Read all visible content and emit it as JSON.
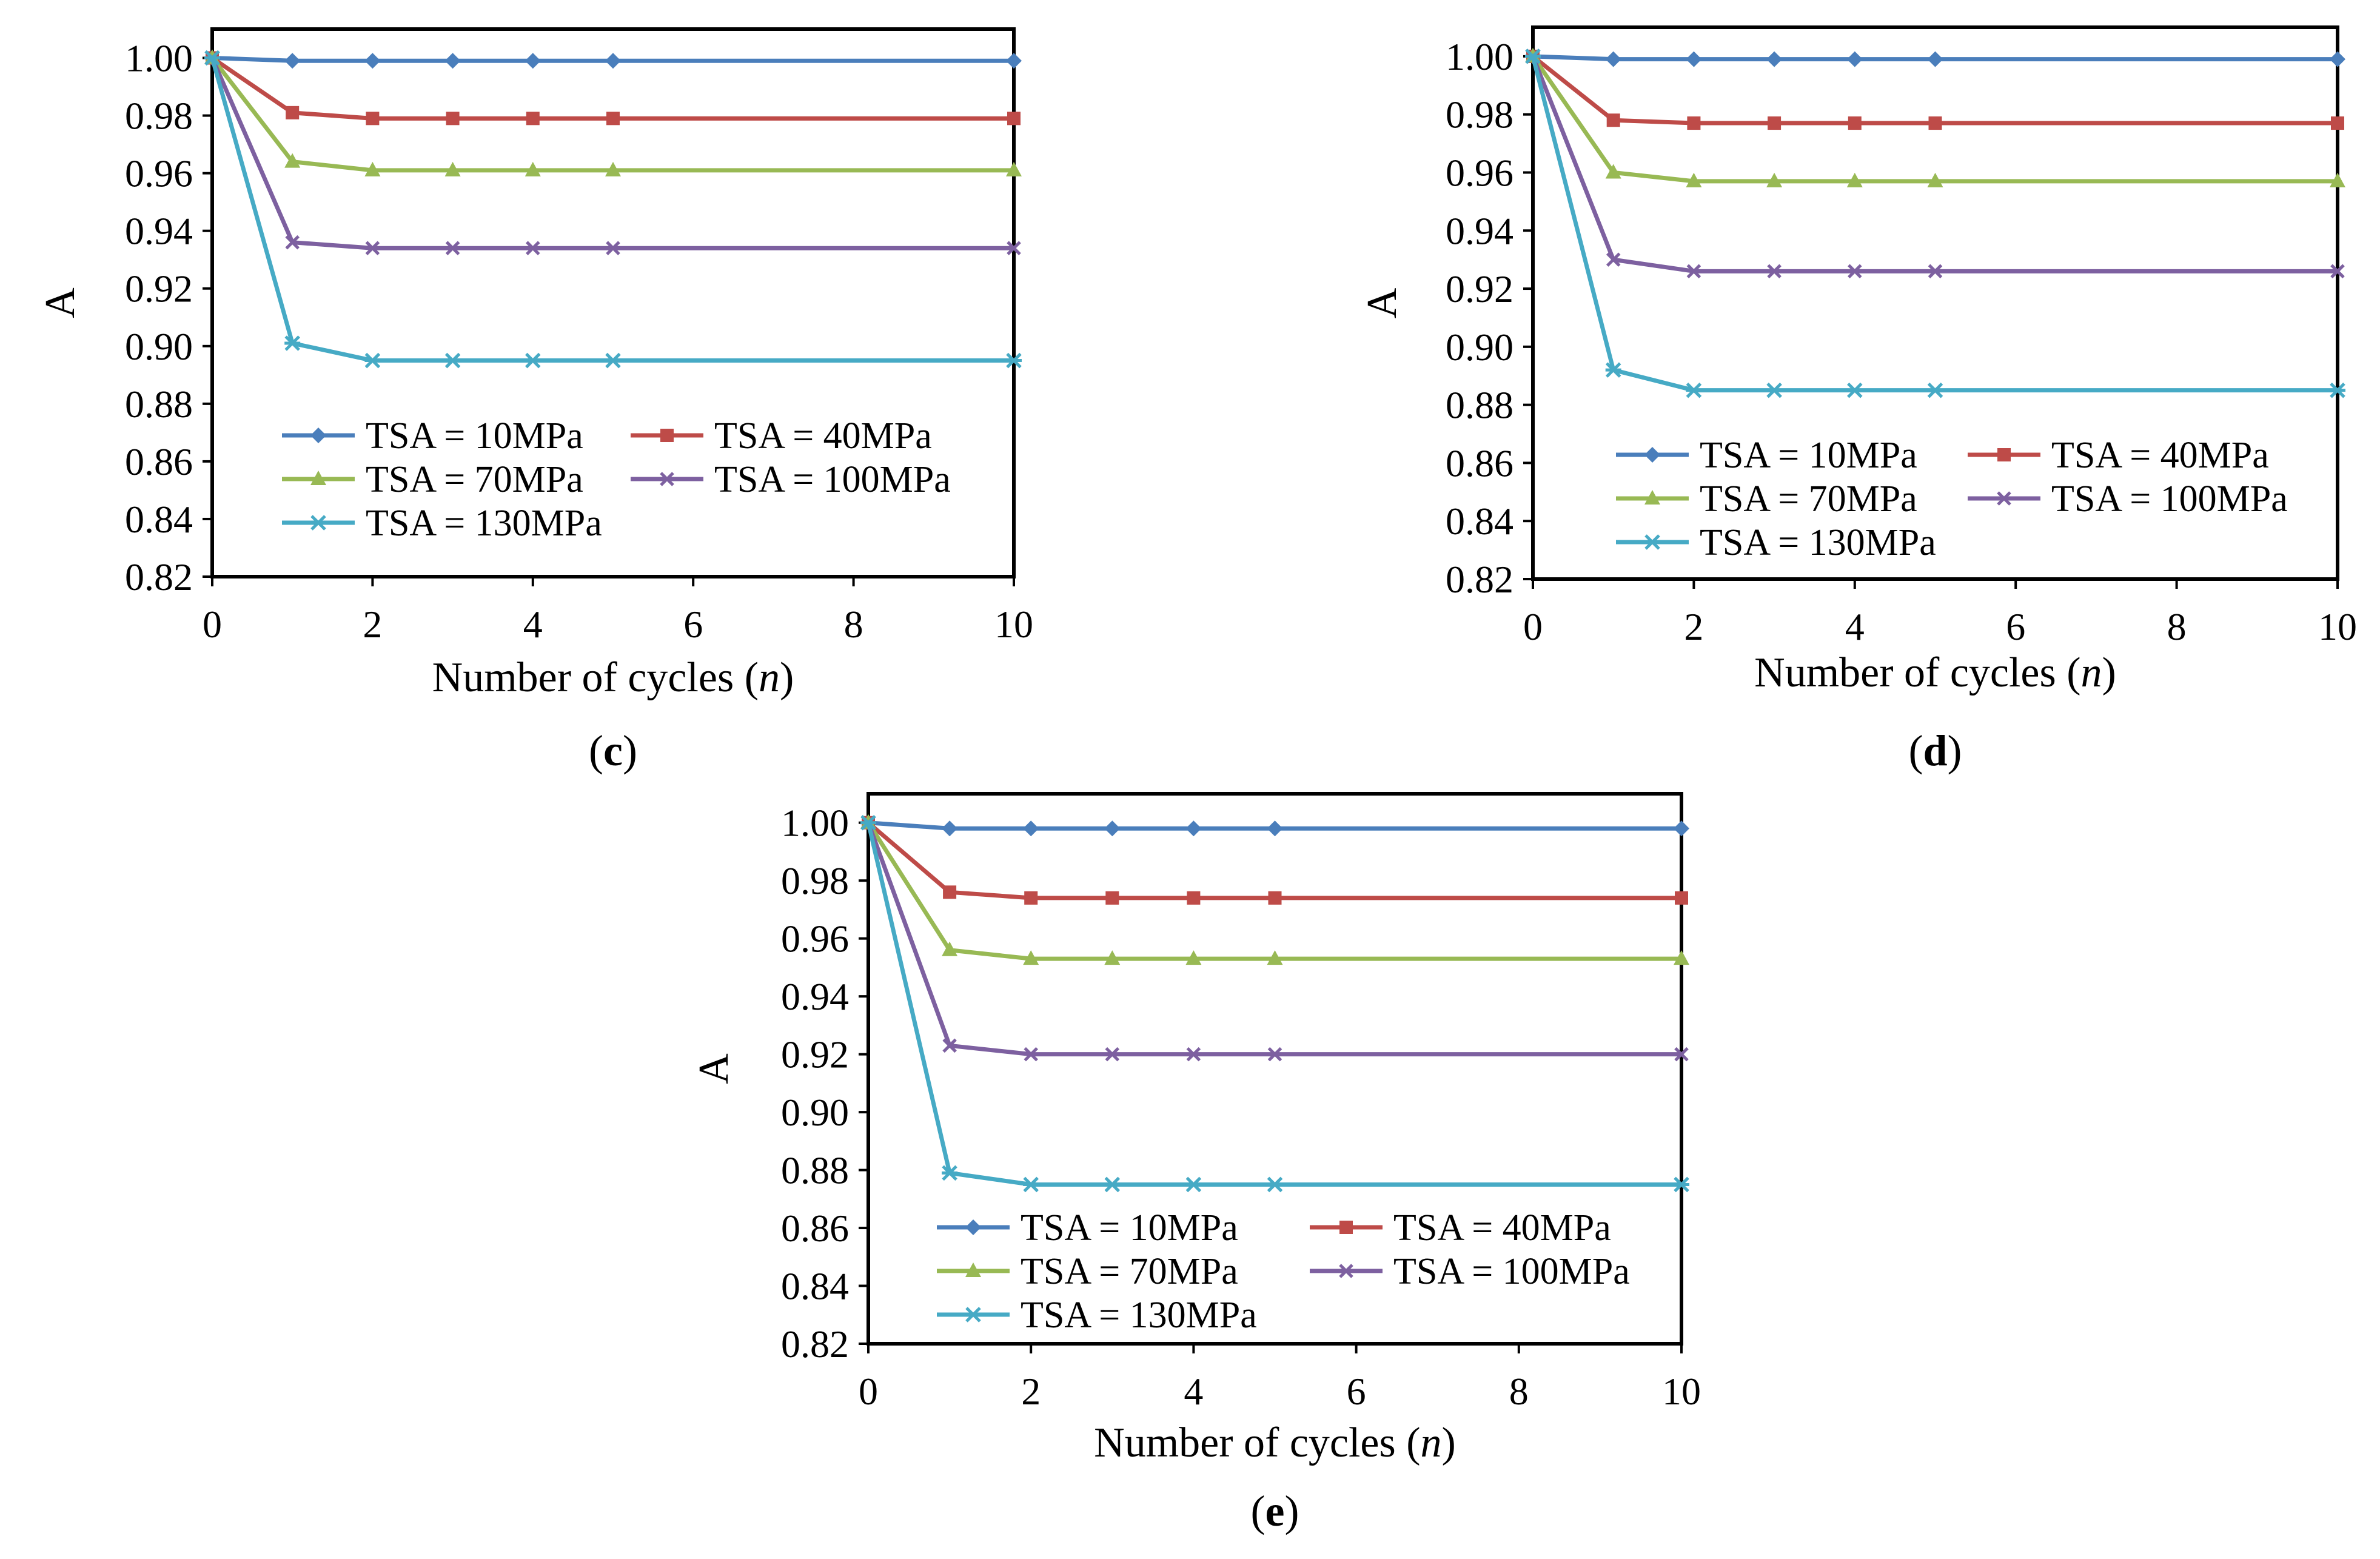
{
  "figure": {
    "series_colors": {
      "TSA = 10MPa": "#4a7ebb",
      "TSA = 40MPa": "#be4b48",
      "TSA = 70MPa": "#98b954",
      "TSA = 100MPa": "#7d60a0",
      "TSA = 130MPa": "#46aac5"
    },
    "series_markers": {
      "TSA = 10MPa": "diamond",
      "TSA = 40MPa": "square",
      "TSA = 70MPa": "triangle",
      "TSA = 100MPa": "x",
      "TSA = 130MPa": "asterisk"
    }
  },
  "chart_data": [
    {
      "type": "line",
      "panel_label": "c",
      "xlabel": "Number of cycles",
      "xlabel_var": "n",
      "ylabel": "A",
      "xlim": [
        0,
        10
      ],
      "ylim": [
        0.82,
        1.01
      ],
      "xticks": [
        0,
        2,
        4,
        6,
        8,
        10
      ],
      "yticks": [
        0.82,
        0.84,
        0.86,
        0.88,
        0.9,
        0.92,
        0.94,
        0.96,
        0.98,
        1.0
      ],
      "ytick_labels": [
        "0.82",
        "0.84",
        "0.86",
        "0.88",
        "0.90",
        "0.92",
        "0.94",
        "0.96",
        "0.98",
        "1.00"
      ],
      "legend": [
        "TSA = 10MPa",
        "TSA = 40MPa",
        "TSA = 70MPa",
        "TSA = 100MPa",
        "TSA = 130MPa"
      ],
      "x": [
        0,
        1,
        2,
        3,
        4,
        5,
        10
      ],
      "series": [
        {
          "name": "TSA = 10MPa",
          "values": [
            1.0,
            0.999,
            0.999,
            0.999,
            0.999,
            0.999,
            0.999
          ]
        },
        {
          "name": "TSA = 40MPa",
          "values": [
            1.0,
            0.981,
            0.979,
            0.979,
            0.979,
            0.979,
            0.979
          ]
        },
        {
          "name": "TSA = 70MPa",
          "values": [
            1.0,
            0.964,
            0.961,
            0.961,
            0.961,
            0.961,
            0.961
          ]
        },
        {
          "name": "TSA = 100MPa",
          "values": [
            1.0,
            0.936,
            0.934,
            0.934,
            0.934,
            0.934,
            0.934
          ]
        },
        {
          "name": "TSA = 130MPa",
          "values": [
            1.0,
            0.901,
            0.895,
            0.895,
            0.895,
            0.895,
            0.895
          ]
        }
      ]
    },
    {
      "type": "line",
      "panel_label": "d",
      "xlabel": "Number of cycles",
      "xlabel_var": "n",
      "ylabel": "A",
      "xlim": [
        0,
        10
      ],
      "ylim": [
        0.82,
        1.01
      ],
      "xticks": [
        0,
        2,
        4,
        6,
        8,
        10
      ],
      "yticks": [
        0.82,
        0.84,
        0.86,
        0.88,
        0.9,
        0.92,
        0.94,
        0.96,
        0.98,
        1.0
      ],
      "ytick_labels": [
        "0.82",
        "0.84",
        "0.86",
        "0.88",
        "0.90",
        "0.92",
        "0.94",
        "0.96",
        "0.98",
        "1.00"
      ],
      "legend": [
        "TSA = 10MPa",
        "TSA = 40MPa",
        "TSA = 70MPa",
        "TSA = 100MPa",
        "TSA = 130MPa"
      ],
      "x": [
        0,
        1,
        2,
        3,
        4,
        5,
        10
      ],
      "series": [
        {
          "name": "TSA = 10MPa",
          "values": [
            1.0,
            0.999,
            0.999,
            0.999,
            0.999,
            0.999,
            0.999
          ]
        },
        {
          "name": "TSA = 40MPa",
          "values": [
            1.0,
            0.978,
            0.977,
            0.977,
            0.977,
            0.977,
            0.977
          ]
        },
        {
          "name": "TSA = 70MPa",
          "values": [
            1.0,
            0.96,
            0.957,
            0.957,
            0.957,
            0.957,
            0.957
          ]
        },
        {
          "name": "TSA = 100MPa",
          "values": [
            1.0,
            0.93,
            0.926,
            0.926,
            0.926,
            0.926,
            0.926
          ]
        },
        {
          "name": "TSA = 130MPa",
          "values": [
            1.0,
            0.892,
            0.885,
            0.885,
            0.885,
            0.885,
            0.885
          ]
        }
      ]
    },
    {
      "type": "line",
      "panel_label": "e",
      "xlabel": "Number of cycles",
      "xlabel_var": "n",
      "ylabel": "A",
      "xlim": [
        0,
        10
      ],
      "ylim": [
        0.82,
        1.01
      ],
      "xticks": [
        0,
        2,
        4,
        6,
        8,
        10
      ],
      "yticks": [
        0.82,
        0.84,
        0.86,
        0.88,
        0.9,
        0.92,
        0.94,
        0.96,
        0.98,
        1.0
      ],
      "ytick_labels": [
        "0.82",
        "0.84",
        "0.86",
        "0.88",
        "0.90",
        "0.92",
        "0.94",
        "0.96",
        "0.98",
        "1.00"
      ],
      "legend": [
        "TSA = 10MPa",
        "TSA = 40MPa",
        "TSA = 70MPa",
        "TSA = 100MPa",
        "TSA = 130MPa"
      ],
      "x": [
        0,
        1,
        2,
        3,
        4,
        5,
        10
      ],
      "series": [
        {
          "name": "TSA = 10MPa",
          "values": [
            1.0,
            0.998,
            0.998,
            0.998,
            0.998,
            0.998,
            0.998
          ]
        },
        {
          "name": "TSA = 40MPa",
          "values": [
            1.0,
            0.976,
            0.974,
            0.974,
            0.974,
            0.974,
            0.974
          ]
        },
        {
          "name": "TSA = 70MPa",
          "values": [
            1.0,
            0.956,
            0.953,
            0.953,
            0.953,
            0.953,
            0.953
          ]
        },
        {
          "name": "TSA = 100MPa",
          "values": [
            1.0,
            0.923,
            0.92,
            0.92,
            0.92,
            0.92,
            0.92
          ]
        },
        {
          "name": "TSA = 130MPa",
          "values": [
            1.0,
            0.879,
            0.875,
            0.875,
            0.875,
            0.875,
            0.875
          ]
        }
      ]
    }
  ]
}
